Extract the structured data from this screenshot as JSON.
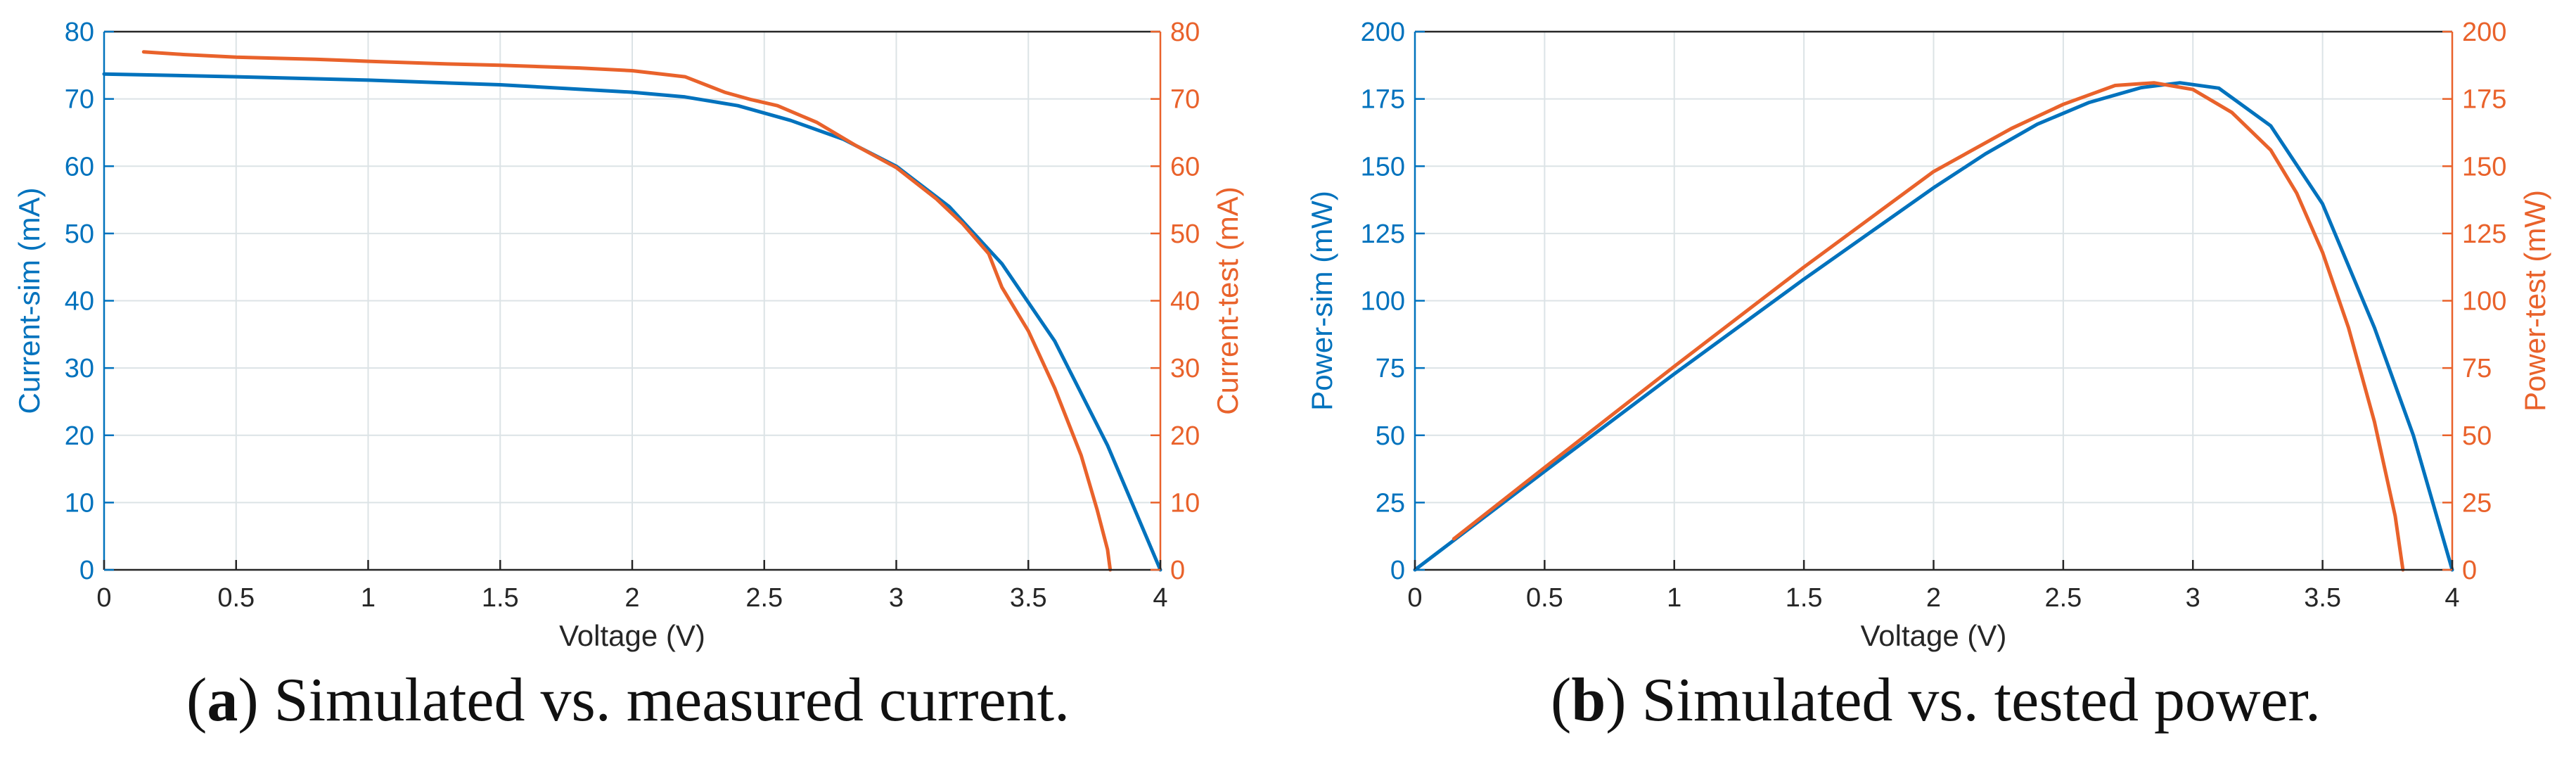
{
  "colors": {
    "sim": "#0072BD",
    "test": "#E9622B",
    "grid": "#DCE3E6",
    "axis": "#262626"
  },
  "captions": [
    {
      "paren_open": "(",
      "label": "a",
      "paren_close": ")",
      "text": " Simulated vs. measured current."
    },
    {
      "paren_open": "(",
      "label": "b",
      "paren_close": ")",
      "text": " Simulated vs. tested power."
    }
  ],
  "chart_data": [
    {
      "type": "line",
      "title": "",
      "xlabel": "Voltage (V)",
      "ylabel": "Current-sim (mA)",
      "y2label": "Current-test (mA)",
      "xlim": [
        0,
        4
      ],
      "ylim": [
        0,
        80
      ],
      "y2lim": [
        0,
        80
      ],
      "xticks": [
        0,
        0.5,
        1,
        1.5,
        2,
        2.5,
        3,
        3.5,
        4
      ],
      "xtick_labels": [
        "0",
        "0.5",
        "1",
        "1.5",
        "2",
        "2.5",
        "3",
        "3.5",
        "4"
      ],
      "yticks": [
        0,
        10,
        20,
        30,
        40,
        50,
        60,
        70,
        80
      ],
      "ytick_labels": [
        "0",
        "10",
        "20",
        "30",
        "40",
        "50",
        "60",
        "70",
        "80"
      ],
      "y2ticks": [
        0,
        10,
        20,
        30,
        40,
        50,
        60,
        70,
        80
      ],
      "y2tick_labels": [
        "0",
        "10",
        "20",
        "30",
        "40",
        "50",
        "60",
        "70",
        "80"
      ],
      "grid": true,
      "series": [
        {
          "name": "Current-sim",
          "axis": "left",
          "color_key": "sim",
          "x": [
            0,
            0.5,
            1,
            1.5,
            2,
            2.2,
            2.4,
            2.6,
            2.8,
            3.0,
            3.2,
            3.4,
            3.6,
            3.8,
            4.0
          ],
          "y": [
            73.7,
            73.3,
            72.8,
            72.1,
            71.0,
            70.3,
            69.0,
            66.8,
            64.0,
            60.0,
            54.0,
            45.5,
            34.0,
            18.5,
            0
          ]
        },
        {
          "name": "Current-test",
          "axis": "right",
          "color_key": "test",
          "x": [
            0.15,
            0.3,
            0.5,
            0.8,
            1.0,
            1.3,
            1.5,
            1.8,
            2.0,
            2.2,
            2.35,
            2.45,
            2.55,
            2.7,
            2.85,
            3.0,
            3.15,
            3.25,
            3.35,
            3.4,
            3.5,
            3.6,
            3.7,
            3.76,
            3.8,
            3.81
          ],
          "y": [
            77.0,
            76.6,
            76.2,
            75.9,
            75.6,
            75.2,
            75.0,
            74.6,
            74.2,
            73.3,
            71.0,
            69.9,
            69.0,
            66.5,
            63.0,
            59.8,
            55.2,
            51.5,
            47.0,
            42.0,
            35.5,
            27.0,
            17.0,
            9.0,
            3.0,
            0
          ]
        }
      ]
    },
    {
      "type": "line",
      "title": "",
      "xlabel": "Voltage (V)",
      "ylabel": "Power-sim (mW)",
      "y2label": "Power-test (mW)",
      "xlim": [
        0,
        4
      ],
      "ylim": [
        0,
        200
      ],
      "y2lim": [
        0,
        200
      ],
      "xticks": [
        0,
        0.5,
        1,
        1.5,
        2,
        2.5,
        3,
        3.5,
        4
      ],
      "xtick_labels": [
        "0",
        "0.5",
        "1",
        "1.5",
        "2",
        "2.5",
        "3",
        "3.5",
        "4"
      ],
      "yticks": [
        0,
        25,
        50,
        75,
        100,
        125,
        150,
        175,
        200
      ],
      "ytick_labels": [
        "0",
        "25",
        "50",
        "75",
        "100",
        "125",
        "150",
        "175",
        "200"
      ],
      "y2ticks": [
        0,
        25,
        50,
        75,
        100,
        125,
        150,
        175,
        200
      ],
      "y2tick_labels": [
        "0",
        "25",
        "50",
        "75",
        "100",
        "125",
        "150",
        "175",
        "200"
      ],
      "grid": true,
      "series": [
        {
          "name": "Power-sim",
          "axis": "left",
          "color_key": "sim",
          "x": [
            0,
            0.5,
            1,
            1.5,
            2,
            2.2,
            2.4,
            2.6,
            2.8,
            2.95,
            3.1,
            3.3,
            3.5,
            3.7,
            3.85,
            4.0
          ],
          "y": [
            0,
            36.6,
            72.8,
            108.0,
            142.0,
            154.6,
            165.6,
            173.7,
            179.2,
            181.0,
            179.0,
            165.0,
            136.0,
            90.0,
            50.0,
            0
          ]
        },
        {
          "name": "Power-test",
          "axis": "right",
          "color_key": "test",
          "x": [
            0.15,
            0.5,
            1.0,
            1.5,
            2.0,
            2.3,
            2.5,
            2.7,
            2.85,
            3.0,
            3.15,
            3.3,
            3.4,
            3.5,
            3.6,
            3.7,
            3.78,
            3.81
          ],
          "y": [
            11.5,
            38.0,
            75.6,
            112.5,
            148.0,
            164.0,
            173.0,
            180.0,
            181.0,
            178.5,
            170.0,
            156.0,
            140.0,
            118.0,
            90.0,
            55.0,
            20.0,
            0
          ]
        }
      ]
    }
  ]
}
